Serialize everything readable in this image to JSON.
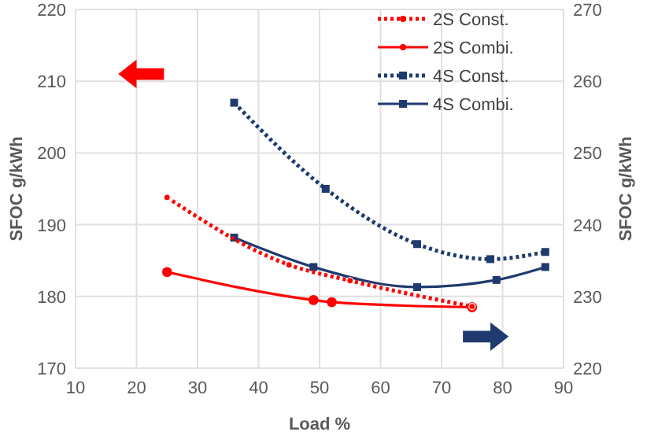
{
  "chart_data": {
    "type": "line",
    "xlabel": "Load %",
    "ylabel": "SFOC g/kWh",
    "y2label": "SFOC g/kWh",
    "xlim": [
      10,
      90
    ],
    "xticks": [
      10,
      20,
      30,
      40,
      50,
      60,
      70,
      80,
      90
    ],
    "ylim": [
      170,
      220
    ],
    "yticks": [
      170,
      180,
      190,
      200,
      210,
      220
    ],
    "y2lim": [
      220,
      270
    ],
    "y2ticks": [
      220,
      230,
      240,
      250,
      260,
      270
    ],
    "grid": true,
    "legend": "top right",
    "series": [
      {
        "name": "2S Const.",
        "color": "#ff0000",
        "line_style": "dotted",
        "marker": "circle",
        "x": [
          25,
          45,
          55,
          75
        ],
        "values": [
          193.8,
          184.4,
          182.2,
          178.6
        ]
      },
      {
        "name": "2S Combi.",
        "color": "#ff0000",
        "line_style": "solid",
        "marker": "circle",
        "x": [
          25,
          49,
          52,
          75
        ],
        "values": [
          183.4,
          179.5,
          179.2,
          178.5
        ]
      },
      {
        "name": "4S Const.",
        "color": "#1f3a6e",
        "line_style": "dotted",
        "marker": "square",
        "axis": "y2",
        "x": [
          36,
          51,
          66,
          78,
          87
        ],
        "values": [
          257,
          245,
          237.3,
          235.2,
          236.2
        ]
      },
      {
        "name": "4S Combi.",
        "color": "#1f3a6e",
        "line_style": "solid",
        "marker": "square",
        "axis": "y2",
        "x": [
          36,
          49,
          66,
          79,
          87
        ],
        "values": [
          238.2,
          234.1,
          231.3,
          232.3,
          234.1
        ]
      }
    ]
  }
}
